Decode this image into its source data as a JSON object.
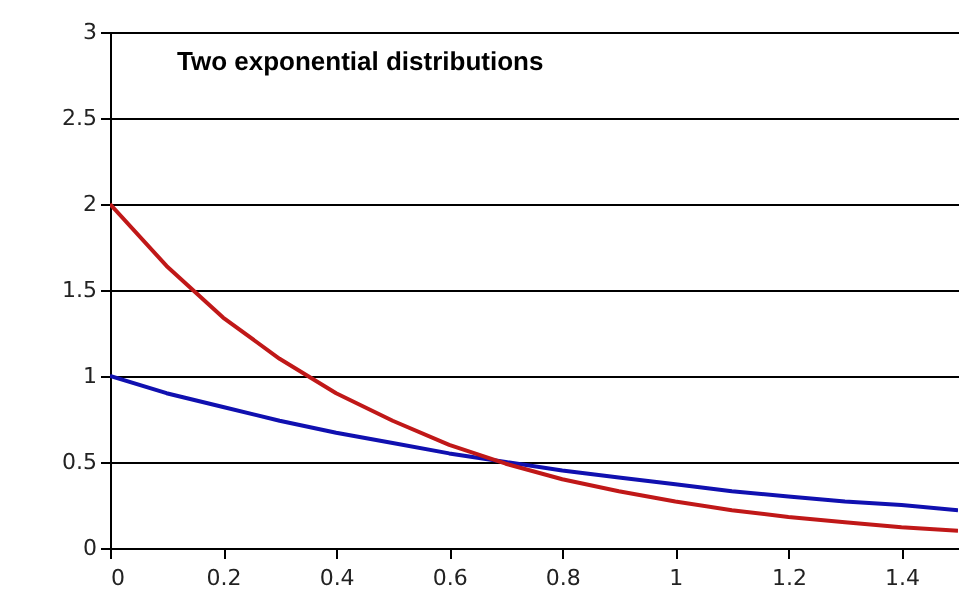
{
  "chart_data": {
    "type": "line",
    "title": "Two exponential distributions",
    "x": [
      0,
      0.1,
      0.2,
      0.3,
      0.4,
      0.5,
      0.6,
      0.7,
      0.8,
      0.9,
      1,
      1.1,
      1.2,
      1.3,
      1.4,
      1.5
    ],
    "series": [
      {
        "color": "#1010b0",
        "values": [
          1,
          0.9,
          0.82,
          0.74,
          0.67,
          0.61,
          0.55,
          0.5,
          0.45,
          0.41,
          0.37,
          0.33,
          0.3,
          0.27,
          0.25,
          0.22
        ]
      },
      {
        "color": "#c01818",
        "values": [
          2,
          1.64,
          1.34,
          1.1,
          0.9,
          0.74,
          0.6,
          0.49,
          0.4,
          0.33,
          0.27,
          0.22,
          0.18,
          0.15,
          0.12,
          0.1
        ]
      }
    ],
    "xlim": [
      0,
      1.5
    ],
    "xticks": [
      0,
      0.2,
      0.4,
      0.6,
      0.8,
      1,
      1.2,
      1.4
    ],
    "ylim": [
      0,
      3
    ],
    "yticks": [
      0,
      0.5,
      1,
      1.5,
      2,
      2.5,
      3
    ],
    "grid": "y",
    "legend": false,
    "marker": "none",
    "line_style": "solid"
  }
}
